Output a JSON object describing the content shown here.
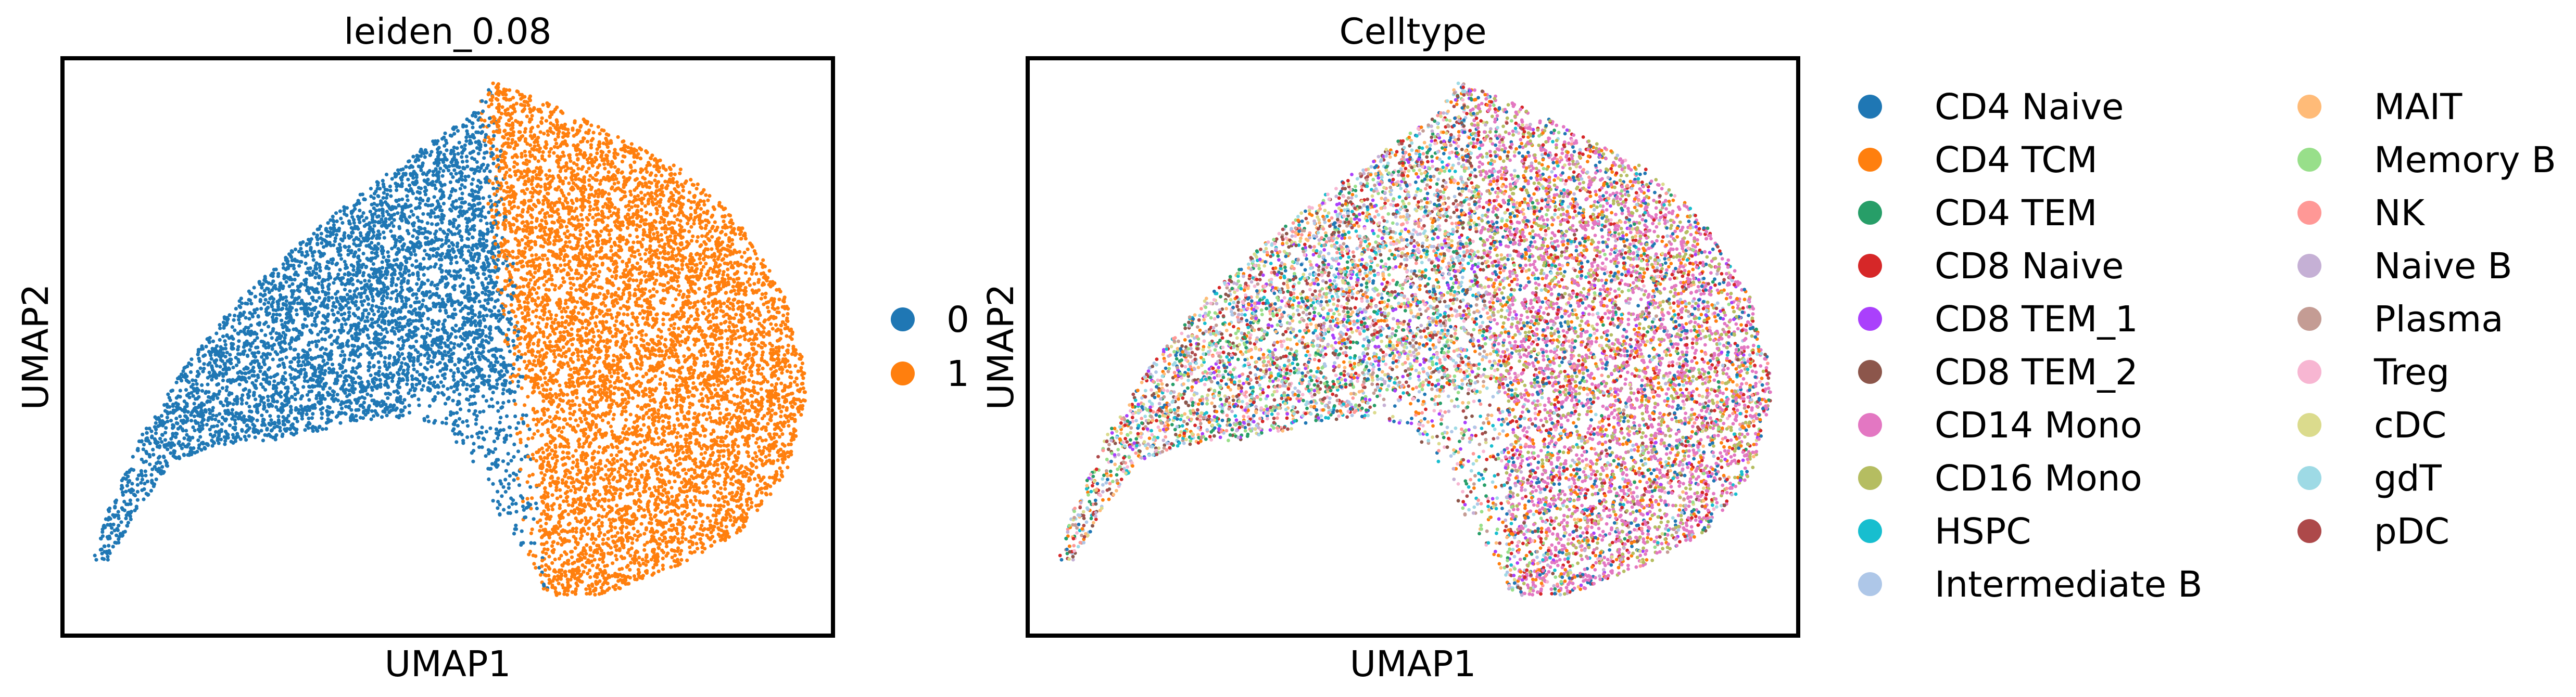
{
  "chart_data": [
    {
      "type": "scatter",
      "title": "leiden_0.08",
      "xlabel": "UMAP1",
      "ylabel": "UMAP2",
      "xticks": [],
      "yticks": [],
      "grid": false,
      "legend_position": "right",
      "series": [
        {
          "name": "0",
          "color": "#1f77b4",
          "approx_points": 6300
        },
        {
          "name": "1",
          "color": "#ff7f0e",
          "approx_points": 5400
        }
      ]
    },
    {
      "type": "scatter",
      "title": "Celltype",
      "xlabel": "UMAP1",
      "ylabel": "UMAP2",
      "xticks": [],
      "yticks": [],
      "grid": false,
      "legend_position": "right",
      "legend_columns": 2,
      "series": [
        {
          "name": "CD4 Naive",
          "color": "#1f77b4"
        },
        {
          "name": "CD4 TCM",
          "color": "#ff7f0e"
        },
        {
          "name": "CD4 TEM",
          "color": "#279e68"
        },
        {
          "name": "CD8 Naive",
          "color": "#d62728"
        },
        {
          "name": "CD8 TEM_1",
          "color": "#aa40fc"
        },
        {
          "name": "CD8 TEM_2",
          "color": "#8c564b"
        },
        {
          "name": "CD14 Mono",
          "color": "#e377c2"
        },
        {
          "name": "CD16 Mono",
          "color": "#b5bd61"
        },
        {
          "name": "HSPC",
          "color": "#17becf"
        },
        {
          "name": "Intermediate B",
          "color": "#aec7e8"
        },
        {
          "name": "MAIT",
          "color": "#ffbb78"
        },
        {
          "name": "Memory B",
          "color": "#98df8a"
        },
        {
          "name": "NK",
          "color": "#ff9896"
        },
        {
          "name": "Naive B",
          "color": "#c5b0d5"
        },
        {
          "name": "Plasma",
          "color": "#c49c94"
        },
        {
          "name": "Treg",
          "color": "#f7b6d2"
        },
        {
          "name": "cDC",
          "color": "#dbdb8d"
        },
        {
          "name": "gdT",
          "color": "#9edae5"
        },
        {
          "name": "pDC",
          "color": "#ad494a"
        }
      ]
    }
  ]
}
